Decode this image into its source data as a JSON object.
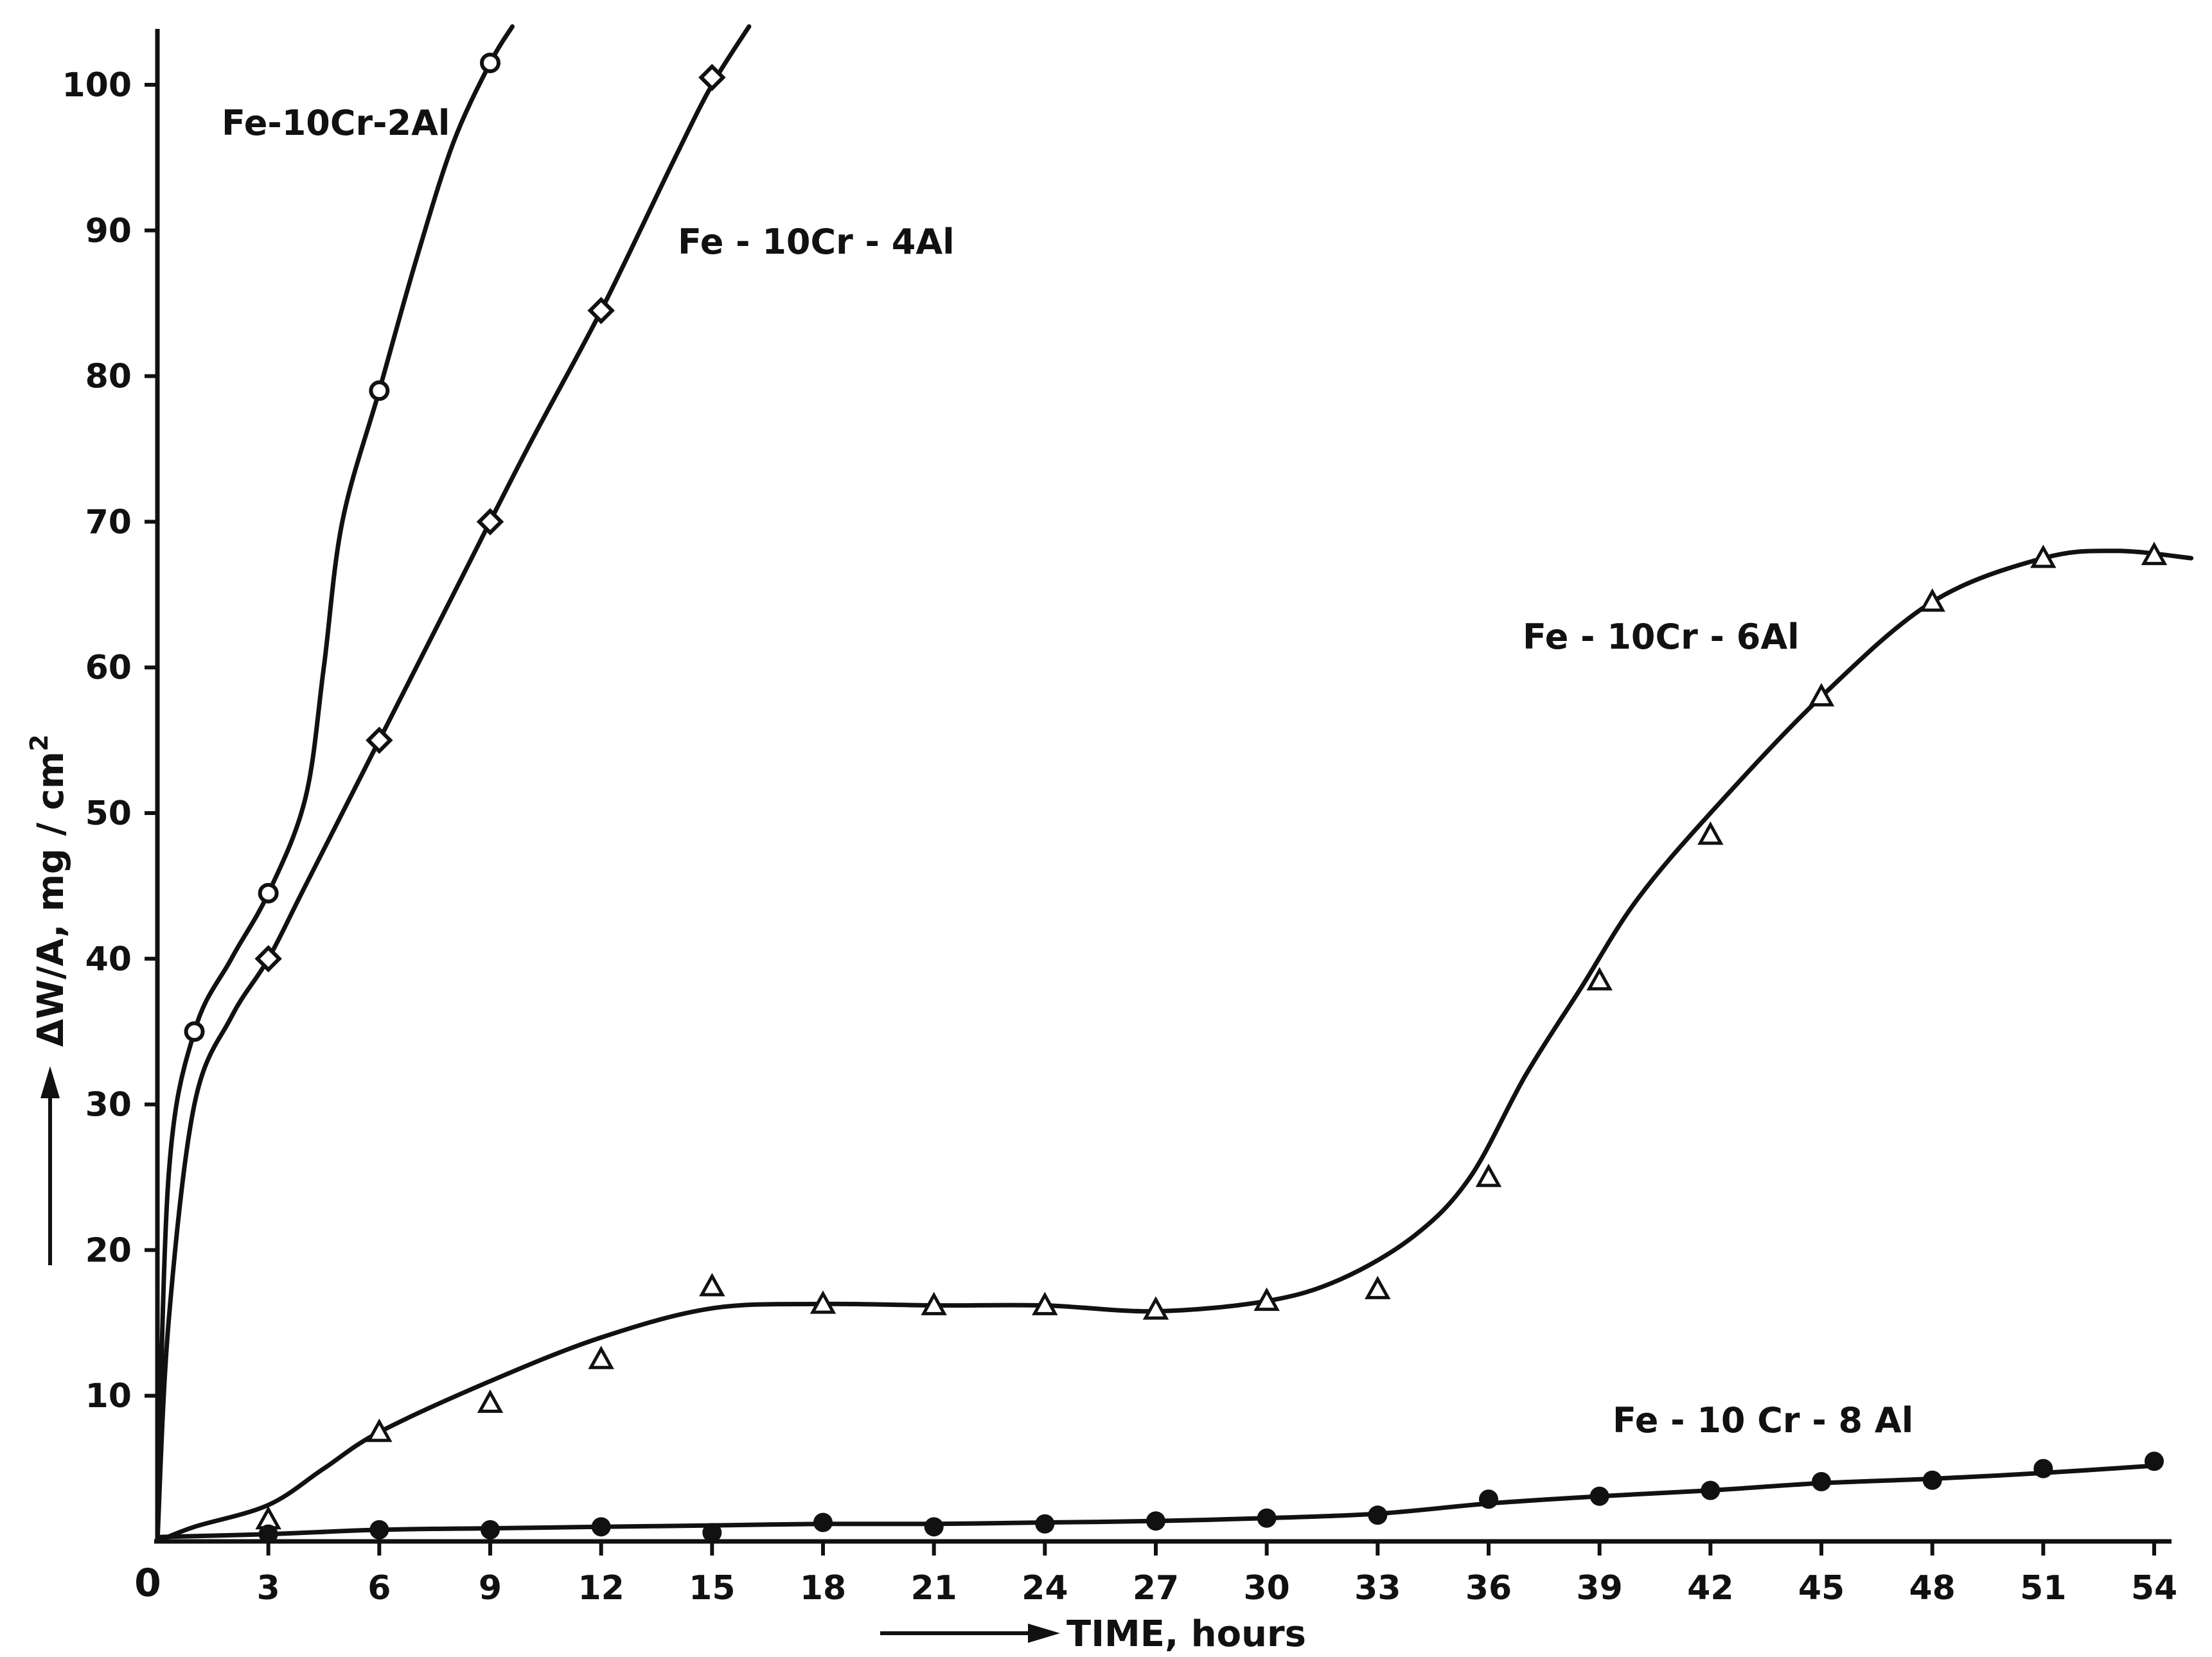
{
  "chart_data": {
    "type": "line",
    "title": "",
    "xlabel": "TIME, hours",
    "ylabel": "ΔW/A, mg / cm",
    "ylabel_superscript": "2",
    "xlim": [
      0,
      55
    ],
    "ylim": [
      0,
      105
    ],
    "grid": false,
    "x_origin_label": "0",
    "x_ticks": [
      3,
      6,
      9,
      12,
      15,
      18,
      21,
      24,
      27,
      30,
      33,
      36,
      39,
      42,
      45,
      48,
      51,
      54
    ],
    "y_ticks": [
      10,
      20,
      30,
      40,
      50,
      60,
      70,
      80,
      90,
      100
    ],
    "series": [
      {
        "name": "Fe-10Cr-2Al",
        "marker": "circle-open",
        "x": [
          1,
          3,
          6,
          9
        ],
        "y": [
          35,
          44.5,
          79,
          101.5
        ],
        "curve_x": [
          0,
          0.3,
          1,
          2,
          3,
          4,
          4.5,
          5,
          6,
          7,
          8,
          9,
          9.6
        ],
        "curve_y": [
          0,
          25,
          35,
          40,
          44.5,
          51,
          60,
          70,
          79,
          88,
          96,
          101.5,
          104
        ]
      },
      {
        "name": "Fe-10Cr-4Al",
        "marker": "diamond-open",
        "x": [
          3,
          6,
          9,
          12,
          15
        ],
        "y": [
          40,
          55,
          70,
          84.5,
          100.5
        ],
        "curve_x": [
          0,
          0.3,
          1,
          2,
          3,
          4,
          6,
          8,
          10,
          12,
          14,
          15,
          16
        ],
        "curve_y": [
          0,
          15,
          30,
          36,
          40,
          45,
          55,
          65,
          75,
          84.5,
          95,
          100,
          104
        ]
      },
      {
        "name": "Fe-10Cr-6Al",
        "marker": "triangle-open",
        "x": [
          3,
          6,
          9,
          12,
          15,
          18,
          21,
          24,
          27,
          30,
          33,
          36,
          39,
          42,
          45,
          48,
          51,
          54
        ],
        "y": [
          1.5,
          7.5,
          9.5,
          12.5,
          17.5,
          16.3,
          16.2,
          16.2,
          15.9,
          16.5,
          17.3,
          25,
          38.5,
          48.5,
          58,
          64.5,
          67.5,
          67.7
        ],
        "curve_x": [
          0,
          1,
          3,
          4.5,
          6,
          9,
          12,
          15,
          18,
          21,
          24,
          27,
          30,
          32,
          34,
          35.5,
          37,
          38.5,
          40,
          42,
          45,
          48,
          51,
          53,
          55
        ],
        "curve_y": [
          0,
          1,
          2.5,
          5,
          7.5,
          11,
          14,
          16,
          16.3,
          16.2,
          16.2,
          15.8,
          16.5,
          18,
          21,
          25,
          32,
          38,
          44,
          50,
          58,
          64.5,
          67.5,
          68,
          67.5
        ]
      },
      {
        "name": "Fe-10Cr-8Al",
        "marker": "circle-filled",
        "x": [
          3,
          6,
          9,
          12,
          15,
          18,
          21,
          24,
          27,
          30,
          33,
          36,
          39,
          42,
          45,
          48,
          51,
          54
        ],
        "y": [
          0.5,
          0.8,
          0.8,
          1,
          0.6,
          1.3,
          1,
          1.2,
          1.4,
          1.6,
          1.8,
          2.9,
          3.1,
          3.5,
          4.1,
          4.2,
          5,
          5.5
        ],
        "curve_x": [
          0,
          3,
          6,
          9,
          12,
          15,
          18,
          21,
          24,
          27,
          30,
          33,
          36,
          39,
          42,
          45,
          48,
          51,
          54
        ],
        "curve_y": [
          0.3,
          0.5,
          0.8,
          0.9,
          1.0,
          1.1,
          1.2,
          1.2,
          1.3,
          1.4,
          1.6,
          1.9,
          2.6,
          3.1,
          3.5,
          4.0,
          4.3,
          4.7,
          5.2
        ]
      }
    ],
    "series_labels": [
      {
        "text": "Fe-10Cr-2Al"
      },
      {
        "text": "Fe - 10Cr - 4Al"
      },
      {
        "text": "Fe - 10Cr - 6Al"
      },
      {
        "text": "Fe - 10 Cr  -  8 Al"
      }
    ]
  }
}
